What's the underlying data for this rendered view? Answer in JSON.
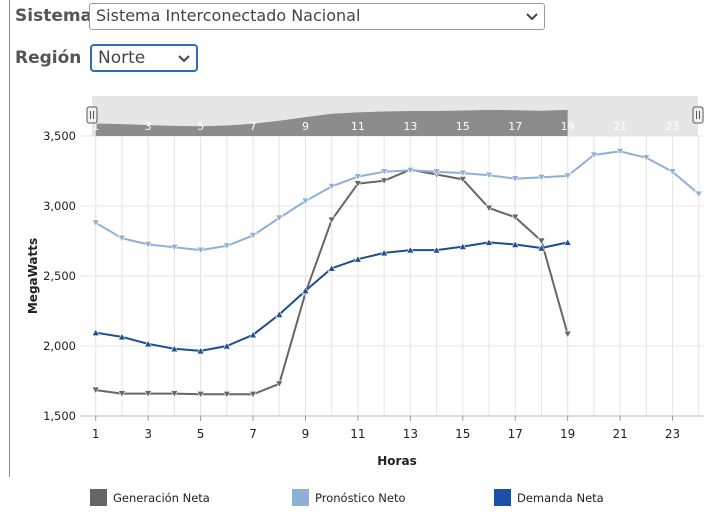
{
  "filters": {
    "sistema_label": "Sistema",
    "sistema_value": "Sistema Interconectado Nacional",
    "region_label": "Región",
    "region_value": "Norte"
  },
  "colors": {
    "generacion": "#666666",
    "pronostico": "#8fb0d6",
    "demanda": "#1c4f8f",
    "navigator_fill": "#8c8c8c",
    "navigator_bg": "#e6e6e6",
    "grid": "#e4e4e4"
  },
  "chart_data": {
    "type": "line",
    "xlabel": "Horas",
    "ylabel": "MegaWatts",
    "xlim": [
      0.4,
      24.2
    ],
    "ylim": [
      1500,
      3500
    ],
    "x_ticks": [
      1,
      3,
      5,
      7,
      9,
      11,
      13,
      15,
      17,
      19,
      21,
      23
    ],
    "y_ticks": [
      1500,
      2000,
      2500,
      3000,
      3500
    ],
    "y_tick_labels": [
      "1,500",
      "2,000",
      "2,500",
      "3,000",
      "3,500"
    ],
    "navigator_labels": [
      "1",
      "3",
      "5",
      "7",
      "9",
      "11",
      "13",
      "15",
      "17",
      "19",
      "21",
      "23"
    ],
    "grid": true,
    "legend_position": "bottom",
    "series": [
      {
        "name": "Generación Neta",
        "marker": "triangle-down",
        "x": [
          1,
          2,
          3,
          4,
          5,
          6,
          7,
          8,
          9,
          10,
          11,
          12,
          13,
          14,
          15,
          16,
          17,
          18,
          19
        ],
        "y": [
          1685,
          1660,
          1660,
          1660,
          1655,
          1655,
          1655,
          1730,
          2380,
          2900,
          3160,
          3180,
          3260,
          3225,
          3190,
          2985,
          2920,
          2750,
          2085
        ]
      },
      {
        "name": "Pronóstico Neto",
        "marker": "triangle-down",
        "x": [
          1,
          2,
          3,
          4,
          5,
          6,
          7,
          8,
          9,
          10,
          11,
          12,
          13,
          14,
          15,
          16,
          17,
          18,
          19,
          20,
          21,
          22,
          23,
          24
        ],
        "y": [
          2880,
          2770,
          2725,
          2705,
          2685,
          2715,
          2790,
          2915,
          3035,
          3140,
          3210,
          3245,
          3255,
          3245,
          3235,
          3220,
          3195,
          3205,
          3215,
          3365,
          3390,
          3345,
          3245,
          3085
        ]
      },
      {
        "name": "Demanda Neta",
        "marker": "triangle-up",
        "x": [
          1,
          2,
          3,
          4,
          5,
          6,
          7,
          8,
          9,
          10,
          11,
          12,
          13,
          14,
          15,
          16,
          17,
          18,
          19
        ],
        "y": [
          2095,
          2065,
          2015,
          1980,
          1965,
          2000,
          2080,
          2225,
          2395,
          2555,
          2620,
          2665,
          2685,
          2685,
          2710,
          2740,
          2725,
          2700,
          2740
        ]
      }
    ]
  }
}
